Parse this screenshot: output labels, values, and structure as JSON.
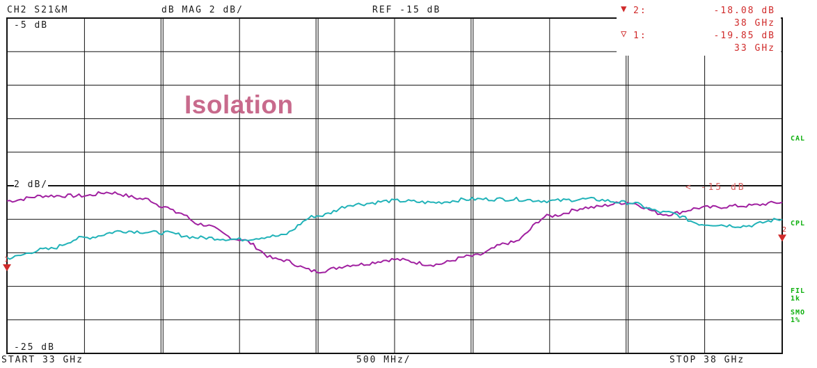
{
  "header": {
    "channel": "CH2  S21&M",
    "format": "dB  MAG 2 dB/",
    "reference": "REF -15 dB"
  },
  "markers": [
    {
      "label": "2:",
      "value": "-18.08 dB",
      "freq": "38 GHz",
      "symbol": "filled-down-triangle"
    },
    {
      "label": "1:",
      "value": "-19.85 dB",
      "freq": "33 GHz",
      "symbol": "outline-down-triangle"
    }
  ],
  "grid_labels": {
    "top": "-5 dB",
    "scale": "2 dB/",
    "bottom": "-25 dB"
  },
  "ref_indicator": "<  -15 dB",
  "annotation": "Isolation",
  "footer": {
    "start": "START  33 GHz",
    "span": "500 MHz/",
    "stop": "STOP 38 GHz"
  },
  "side_labels": {
    "cal": "CAL",
    "cpl": "CPL",
    "fil": "FIL\n1k",
    "smo": "SMO\n1%"
  },
  "colors": {
    "trace_magenta": "#a020a0",
    "trace_cyan": "#20b2b8",
    "marker_red": "#d02a2a",
    "status_green": "#10b010",
    "annotation": "#c86a8c"
  },
  "chart_data": {
    "type": "line",
    "xlabel": "",
    "ylabel": "",
    "x_unit": "GHz",
    "y_unit": "dB",
    "xlim": [
      33,
      38
    ],
    "ylim": [
      -25,
      -5
    ],
    "grid": true,
    "reference_level": -15,
    "series": [
      {
        "color": "#a020a0",
        "x": [
          33.0,
          33.25,
          33.5,
          33.65,
          33.9,
          34.0,
          34.1,
          34.25,
          34.5,
          34.75,
          35.0,
          35.25,
          35.5,
          35.75,
          36.0,
          36.25,
          36.5,
          36.75,
          37.0,
          37.25,
          37.5,
          37.75,
          38.0
        ],
        "y": [
          -15.9,
          -15.6,
          -15.6,
          -15.4,
          -15.8,
          -16.2,
          -16.6,
          -17.3,
          -18.2,
          -19.4,
          -20.1,
          -19.7,
          -19.4,
          -19.7,
          -19.2,
          -18.4,
          -16.8,
          -16.3,
          -16.0,
          -16.7,
          -16.3,
          -16.2,
          -16.0
        ]
      },
      {
        "color": "#20b2b8",
        "x": [
          33.0,
          33.25,
          33.5,
          33.75,
          34.0,
          34.25,
          34.5,
          34.75,
          35.0,
          35.25,
          35.5,
          35.75,
          36.0,
          36.25,
          36.5,
          36.75,
          37.0,
          37.25,
          37.5,
          37.75,
          38.0
        ],
        "y": [
          -19.3,
          -18.8,
          -18.1,
          -17.7,
          -17.8,
          -18.1,
          -18.2,
          -18.0,
          -16.8,
          -16.1,
          -15.9,
          -16.0,
          -15.8,
          -15.8,
          -15.9,
          -15.8,
          -16.0,
          -16.6,
          -17.3,
          -17.4,
          -17.0
        ]
      }
    ],
    "markers": [
      {
        "id": 1,
        "x": 33,
        "y": -19.85
      },
      {
        "id": 2,
        "x": 38,
        "y": -18.08
      }
    ]
  }
}
